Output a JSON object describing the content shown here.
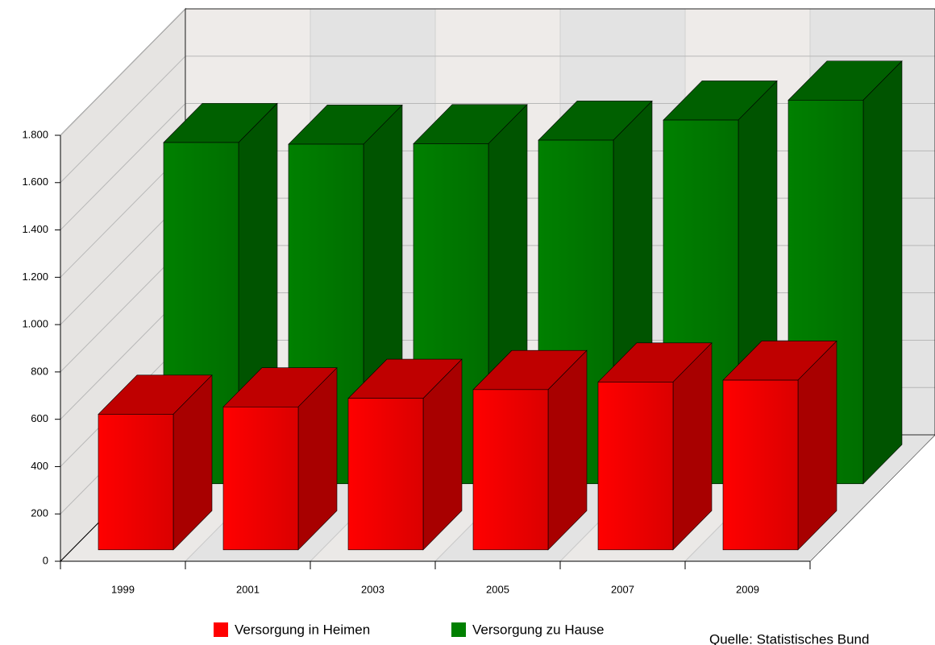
{
  "chart_data": {
    "type": "bar3d",
    "categories": [
      "1999",
      "2001",
      "2003",
      "2005",
      "2007",
      "2009"
    ],
    "series": [
      {
        "name": "Versorgung in Heimen",
        "color": "#ff0000",
        "values": [
          573,
          604,
          640,
          677,
          709,
          717
        ]
      },
      {
        "name": "Versorgung zu Hause",
        "color": "#008000",
        "values": [
          1442,
          1435,
          1437,
          1452,
          1537,
          1621
        ]
      }
    ],
    "ylim": [
      0,
      1800
    ],
    "yticks": [
      0,
      200,
      400,
      600,
      800,
      {
        "value": 1000,
        "label": "1.000"
      },
      {
        "value": 1200,
        "label": "1.200"
      },
      {
        "value": 1400,
        "label": "1.400"
      },
      {
        "value": 1600,
        "label": "1.600"
      },
      {
        "value": 1800,
        "label": "1.800"
      }
    ],
    "grid": true,
    "source": "Quelle: Statistisches Bund"
  }
}
